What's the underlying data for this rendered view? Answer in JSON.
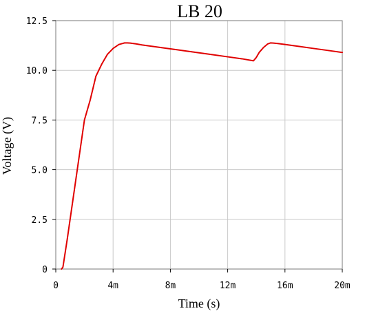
{
  "chart_data": {
    "type": "line",
    "title": "LB 20",
    "xlabel": "Time (s)",
    "ylabel": "Voltage (V)",
    "xlim": [
      0,
      0.02
    ],
    "ylim": [
      0,
      12.5
    ],
    "x_ticks": [
      0,
      0.004,
      0.008,
      0.012,
      0.016,
      0.02
    ],
    "x_tick_labels": [
      "0",
      "4m",
      "8m",
      "12m",
      "16m",
      "20m"
    ],
    "y_ticks": [
      0,
      2.5,
      5.0,
      7.5,
      10.0,
      12.5
    ],
    "y_tick_labels": [
      "0",
      "2.5",
      "5.0",
      "7.5",
      "10.0",
      "12.5"
    ],
    "grid": true,
    "line_color": "#e00000",
    "series": [
      {
        "x": [
          0.0004,
          0.0005,
          0.0008,
          0.0012,
          0.0016,
          0.002,
          0.0024,
          0.0028,
          0.0032,
          0.0036,
          0.004,
          0.0044,
          0.0048,
          0.005,
          0.0052,
          0.0056,
          0.006,
          0.007,
          0.008,
          0.009,
          0.01,
          0.011,
          0.012,
          0.013,
          0.0138,
          0.014,
          0.0142,
          0.0145,
          0.0148,
          0.015,
          0.0152,
          0.0155,
          0.016,
          0.017,
          0.018,
          0.019,
          0.02
        ],
        "y": [
          0,
          0.1,
          1.5,
          3.5,
          5.5,
          7.5,
          8.5,
          9.7,
          10.3,
          10.8,
          11.1,
          11.3,
          11.38,
          11.38,
          11.37,
          11.33,
          11.28,
          11.18,
          11.08,
          10.98,
          10.88,
          10.78,
          10.68,
          10.58,
          10.48,
          10.65,
          10.9,
          11.15,
          11.33,
          11.38,
          11.37,
          11.35,
          11.3,
          11.2,
          11.1,
          11.0,
          10.9
        ]
      }
    ]
  }
}
